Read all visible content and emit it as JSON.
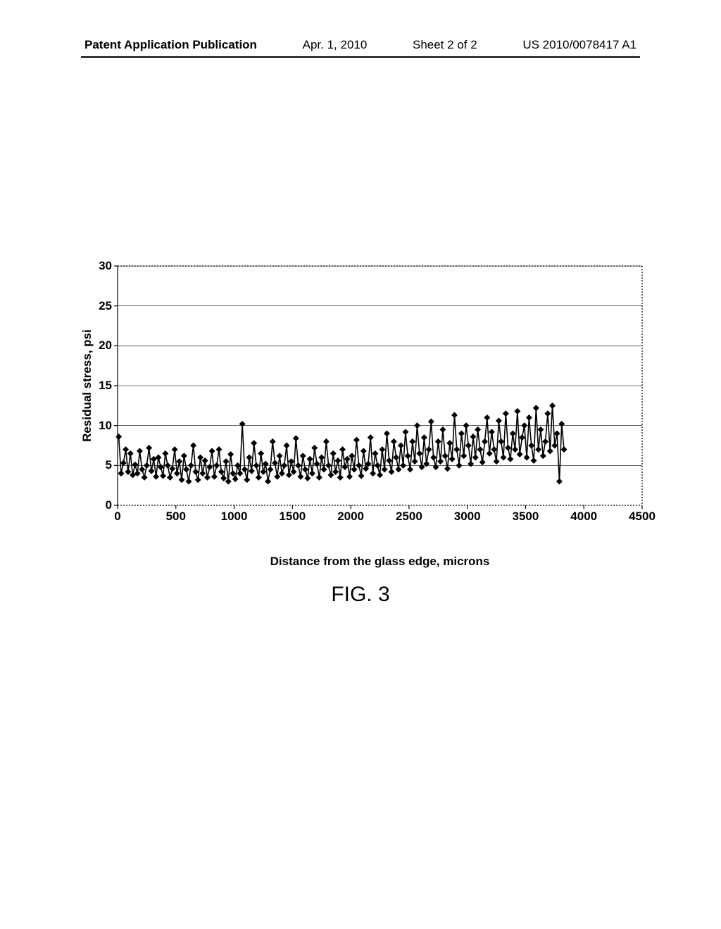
{
  "header": {
    "publication_label": "Patent Application Publication",
    "date": "Apr. 1, 2010",
    "sheet": "Sheet 2 of 2",
    "pub_number": "US 2010/0078417 A1"
  },
  "figure_caption": "FIG. 3",
  "chart": {
    "type": "line-marker",
    "xlabel": "Distance from the glass edge, microns",
    "ylabel": "Residual stress, psi",
    "xlim": [
      0,
      4500
    ],
    "ylim": [
      0,
      30
    ],
    "xticks": [
      0,
      500,
      1000,
      1500,
      2000,
      2500,
      3000,
      3500,
      4000,
      4500
    ],
    "yticks": [
      0,
      5,
      10,
      15,
      20,
      25,
      30
    ],
    "label_fontsize": 17,
    "tick_fontsize": 17,
    "tick_fontweight": "bold",
    "label_fontweight": "bold",
    "background_color": "#ffffff",
    "grid_color": "#000000",
    "grid_style": "solid",
    "grid_width": 0.6,
    "border_style_top_right_bottom": "dashed",
    "border_style_left": "solid",
    "border_color": "#000000",
    "border_width": 1.2,
    "line_color": "#000000",
    "line_width": 1.6,
    "marker": "diamond",
    "marker_size": 4.5,
    "marker_color": "#000000",
    "series": {
      "x": [
        10,
        30,
        50,
        70,
        90,
        110,
        130,
        150,
        170,
        190,
        210,
        230,
        250,
        270,
        290,
        310,
        330,
        350,
        370,
        390,
        410,
        430,
        450,
        470,
        490,
        510,
        530,
        550,
        570,
        590,
        610,
        630,
        650,
        670,
        690,
        710,
        730,
        750,
        770,
        790,
        810,
        830,
        850,
        870,
        890,
        910,
        930,
        950,
        970,
        990,
        1010,
        1030,
        1050,
        1070,
        1090,
        1110,
        1130,
        1150,
        1170,
        1190,
        1210,
        1230,
        1250,
        1270,
        1290,
        1310,
        1330,
        1350,
        1370,
        1390,
        1410,
        1430,
        1450,
        1470,
        1490,
        1510,
        1530,
        1550,
        1570,
        1590,
        1610,
        1630,
        1650,
        1670,
        1690,
        1710,
        1730,
        1750,
        1770,
        1790,
        1810,
        1830,
        1850,
        1870,
        1890,
        1910,
        1930,
        1950,
        1970,
        1990,
        2010,
        2030,
        2050,
        2070,
        2090,
        2110,
        2130,
        2150,
        2170,
        2190,
        2210,
        2230,
        2250,
        2270,
        2290,
        2310,
        2330,
        2350,
        2370,
        2390,
        2410,
        2430,
        2450,
        2470,
        2490,
        2510,
        2530,
        2550,
        2570,
        2590,
        2610,
        2630,
        2650,
        2670,
        2690,
        2710,
        2730,
        2750,
        2770,
        2790,
        2810,
        2830,
        2850,
        2870,
        2890,
        2910,
        2930,
        2950,
        2970,
        2990,
        3010,
        3030,
        3050,
        3070,
        3090,
        3110,
        3130,
        3150,
        3170,
        3190,
        3210,
        3230,
        3250,
        3270,
        3290,
        3310,
        3330,
        3350,
        3370,
        3390,
        3410,
        3430,
        3450,
        3470,
        3490,
        3510,
        3530,
        3550,
        3570,
        3590,
        3610,
        3630,
        3650,
        3670,
        3690,
        3710,
        3730,
        3750,
        3770,
        3790,
        3810,
        3830
      ],
      "y": [
        8.6,
        4.0,
        5.3,
        7.0,
        4.2,
        6.5,
        3.8,
        5.1,
        4.0,
        6.8,
        4.5,
        3.5,
        5.0,
        7.2,
        4.3,
        5.8,
        3.6,
        6.0,
        4.8,
        3.7,
        6.5,
        5.0,
        3.5,
        4.6,
        7.0,
        4.0,
        5.5,
        3.2,
        6.2,
        4.5,
        3.0,
        5.0,
        7.5,
        4.2,
        3.2,
        6.0,
        4.0,
        5.6,
        3.5,
        4.8,
        6.8,
        3.6,
        5.0,
        7.0,
        4.2,
        3.4,
        5.5,
        3.0,
        6.4,
        4.0,
        3.3,
        5.0,
        4.0,
        10.2,
        4.5,
        3.2,
        6.0,
        4.3,
        7.8,
        5.0,
        3.5,
        6.5,
        4.2,
        5.2,
        3.0,
        4.5,
        8.0,
        5.3,
        3.6,
        6.2,
        4.0,
        5.0,
        7.5,
        3.8,
        5.5,
        4.2,
        8.4,
        5.0,
        3.6,
        6.2,
        4.5,
        3.4,
        5.8,
        4.0,
        7.2,
        5.2,
        3.5,
        6.0,
        4.5,
        8.0,
        5.0,
        3.8,
        6.5,
        4.2,
        5.6,
        3.5,
        7.0,
        4.8,
        5.8,
        3.6,
        6.2,
        4.5,
        8.2,
        5.0,
        3.7,
        6.8,
        4.6,
        5.2,
        8.5,
        4.0,
        6.5,
        5.0,
        3.8,
        7.0,
        4.5,
        9.0,
        5.6,
        4.2,
        8.0,
        6.0,
        4.5,
        7.5,
        5.0,
        9.2,
        6.2,
        4.5,
        8.0,
        5.5,
        10.0,
        6.5,
        4.8,
        8.5,
        5.2,
        7.0,
        10.5,
        6.0,
        4.8,
        8.0,
        5.5,
        9.5,
        6.2,
        4.6,
        7.8,
        5.8,
        11.3,
        7.0,
        5.0,
        9.0,
        6.2,
        10.0,
        7.5,
        5.2,
        8.6,
        6.0,
        9.5,
        7.0,
        5.4,
        8.0,
        11.0,
        6.5,
        9.2,
        7.0,
        5.5,
        10.6,
        8.0,
        6.0,
        11.5,
        7.2,
        5.8,
        9.0,
        7.0,
        11.8,
        6.4,
        8.5,
        10.0,
        6.0,
        11.0,
        7.5,
        5.6,
        12.2,
        7.0,
        9.5,
        6.2,
        8.0,
        11.5,
        6.8,
        12.5,
        7.5,
        9.0,
        3.0,
        10.2,
        7.0
      ]
    }
  }
}
